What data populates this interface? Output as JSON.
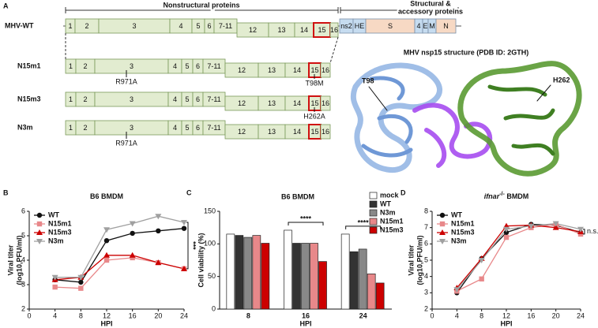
{
  "panel_a": {
    "label": "A",
    "header_nonstructural": "Nonstructural proteins",
    "header_structural": [
      "Structural &",
      "accessory proteins"
    ],
    "rows": [
      {
        "name": "MHV-WT",
        "color": "#111111",
        "segments": [
          "1",
          "2",
          "3",
          "4",
          "5",
          "6",
          "7-11",
          "12",
          "13",
          "14",
          "15",
          "16",
          "ns2",
          "HE",
          "S",
          "4",
          "E",
          "M",
          "N"
        ],
        "mutations": []
      },
      {
        "name": "N15m1",
        "color": "#e8888a",
        "segments": [
          "1",
          "2",
          "3",
          "4",
          "5",
          "6",
          "7-11",
          "12",
          "13",
          "14",
          "15",
          "16"
        ],
        "mutations": [
          "R971A",
          "T98M"
        ]
      },
      {
        "name": "N15m3",
        "color": "#cc0000",
        "segments": [
          "1",
          "2",
          "3",
          "4",
          "5",
          "6",
          "7-11",
          "12",
          "13",
          "14",
          "15",
          "16"
        ],
        "mutations": [
          "H262A"
        ]
      },
      {
        "name": "N3m",
        "color": "#a0a0a0",
        "segments": [
          "1",
          "2",
          "3",
          "4",
          "5",
          "6",
          "7-11",
          "12",
          "13",
          "14",
          "15",
          "16"
        ],
        "mutations": [
          "R971A"
        ]
      }
    ],
    "structure_title": "MHV nsp15 structure (PDB ID: 2GTH)",
    "structure_labels": [
      {
        "text": "T98",
        "color": "#e8888a"
      },
      {
        "text": "H262",
        "color": "#cc0000"
      }
    ]
  },
  "chart_data": [
    {
      "type": "line",
      "panel": "B",
      "title": "B6 BMDM",
      "xlabel": "HPI",
      "ylabel": [
        "Viral titer",
        "(log10,PFU/ml)"
      ],
      "x": [
        4,
        8,
        12,
        16,
        20,
        24
      ],
      "xlim": [
        0,
        24
      ],
      "xticks": [
        0,
        4,
        8,
        12,
        16,
        20,
        24
      ],
      "ylim": [
        2,
        6
      ],
      "yticks": [
        2,
        3,
        4,
        5,
        6
      ],
      "legend": "upper left",
      "annotation": "***",
      "series": [
        {
          "name": "WT",
          "color": "#111111",
          "marker": "circle",
          "values": [
            3.2,
            3.1,
            4.8,
            5.1,
            5.2,
            5.3
          ]
        },
        {
          "name": "N15m1",
          "color": "#e8888a",
          "marker": "square",
          "values": [
            2.9,
            2.85,
            4.0,
            4.1,
            3.9,
            3.65
          ]
        },
        {
          "name": "N15m3",
          "color": "#cc0000",
          "marker": "triangle",
          "values": [
            3.2,
            3.3,
            4.2,
            4.2,
            3.9,
            3.65
          ]
        },
        {
          "name": "N3m",
          "color": "#a0a0a0",
          "marker": "triangle-down",
          "values": [
            3.3,
            3.3,
            5.25,
            5.5,
            5.8,
            5.55
          ]
        }
      ]
    },
    {
      "type": "bar",
      "panel": "C",
      "title": "B6 BMDM",
      "xlabel": "HPI",
      "ylabel": "Cell viability (%)",
      "categories": [
        "8",
        "16",
        "24"
      ],
      "ylim": [
        0,
        150
      ],
      "yticks": [
        0,
        50,
        100,
        150
      ],
      "legend": "upper right",
      "annotations": [
        "****",
        "****"
      ],
      "series": [
        {
          "name": "mock",
          "color": "#ffffff",
          "text_color": "#111111",
          "values": [
            115,
            121,
            115
          ]
        },
        {
          "name": "WT",
          "color": "#333333",
          "text_color": "#111111",
          "values": [
            113,
            101,
            88
          ]
        },
        {
          "name": "N3m",
          "color": "#888888",
          "text_color": "#999999",
          "values": [
            110,
            101,
            92
          ]
        },
        {
          "name": "N15m1",
          "color": "#e8888a",
          "text_color": "#e8888a",
          "values": [
            113,
            101,
            54
          ]
        },
        {
          "name": "N15m3",
          "color": "#cc0000",
          "text_color": "#cc0000",
          "values": [
            101,
            73,
            40
          ]
        }
      ]
    },
    {
      "type": "line",
      "panel": "D",
      "title": "ifnar",
      "title_superscript": "-/-",
      "title_suffix": " BMDM",
      "xlabel": "HPI",
      "ylabel": [
        "Viral titer",
        "(log10,PFU/ml)"
      ],
      "x": [
        4,
        8,
        12,
        16,
        20,
        24
      ],
      "xlim": [
        0,
        24
      ],
      "xticks": [
        0,
        4,
        8,
        12,
        16,
        20,
        24
      ],
      "ylim": [
        2,
        8
      ],
      "yticks": [
        2,
        3,
        4,
        5,
        6,
        7,
        8
      ],
      "legend": "upper left",
      "annotation": "n.s.",
      "series": [
        {
          "name": "WT",
          "color": "#111111",
          "marker": "circle",
          "values": [
            3.0,
            5.1,
            6.7,
            7.2,
            7.15,
            6.7
          ]
        },
        {
          "name": "N15m1",
          "color": "#e8888a",
          "marker": "square",
          "values": [
            3.1,
            3.85,
            6.4,
            7.0,
            7.2,
            6.6
          ]
        },
        {
          "name": "N15m3",
          "color": "#cc0000",
          "marker": "triangle",
          "values": [
            3.3,
            5.1,
            7.1,
            7.15,
            7.0,
            6.75
          ]
        },
        {
          "name": "N3m",
          "color": "#a0a0a0",
          "marker": "triangle-down",
          "values": [
            3.2,
            5.0,
            6.9,
            7.1,
            7.25,
            6.9
          ]
        }
      ]
    }
  ]
}
